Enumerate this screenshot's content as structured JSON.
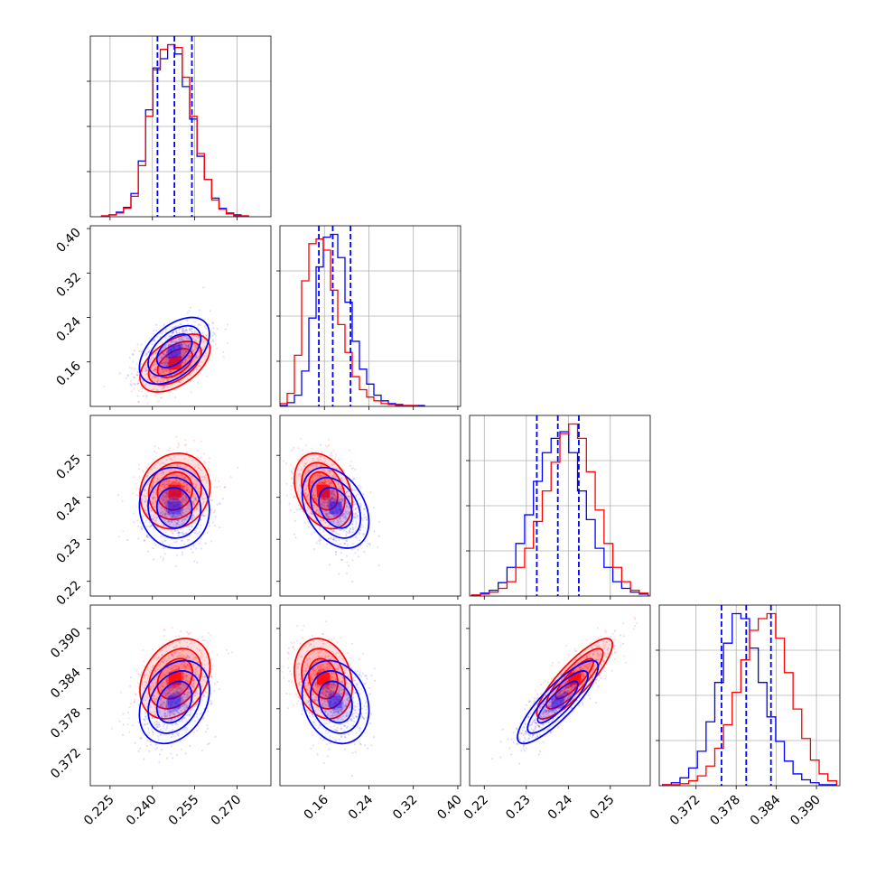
{
  "colors": {
    "series_a": "#0000ff",
    "series_b": "#ff0000",
    "quantile_line": "#0000ff",
    "grid": "#b0b0b0"
  },
  "chart_data": {
    "type": "corner",
    "n_params": 4,
    "grid": true,
    "params": [
      {
        "range": [
          0.218,
          0.282
        ],
        "ticks": [
          0.225,
          0.24,
          0.255,
          0.27
        ],
        "tick_labels": [
          "0.225",
          "0.240",
          "0.255",
          "0.270"
        ]
      },
      {
        "range": [
          0.08,
          0.405
        ],
        "ticks": [
          0.16,
          0.24,
          0.32,
          0.4
        ],
        "tick_labels": [
          "0.16",
          "0.24",
          "0.32",
          "0.40"
        ]
      },
      {
        "range": [
          0.2165,
          0.2595
        ],
        "ticks": [
          0.22,
          0.23,
          0.24,
          0.25
        ],
        "tick_labels": [
          "0.22",
          "0.23",
          "0.24",
          "0.25"
        ]
      },
      {
        "range": [
          0.3665,
          0.3935
        ],
        "ticks": [
          0.372,
          0.378,
          0.384,
          0.39
        ],
        "tick_labels": [
          "0.372",
          "0.378",
          "0.384",
          "0.390"
        ]
      }
    ],
    "series": [
      {
        "color": "#0000ff",
        "mean": [
          0.2478,
          0.18,
          0.2375,
          0.379
        ],
        "std": [
          0.0062,
          0.03,
          0.0048,
          0.0031
        ],
        "corr": [
          [
            1,
            0.5,
            -0.05,
            0.3
          ],
          [
            0.5,
            1,
            -0.35,
            -0.2
          ],
          [
            -0.05,
            -0.35,
            1,
            0.85
          ],
          [
            0.3,
            -0.2,
            0.85,
            1
          ]
        ]
      },
      {
        "color": "#ff0000",
        "mean": [
          0.248,
          0.158,
          0.2415,
          0.3825
        ],
        "std": [
          0.0062,
          0.026,
          0.0045,
          0.003
        ],
        "corr": [
          [
            1,
            0.5,
            0.1,
            0.3
          ],
          [
            0.5,
            1,
            -0.3,
            -0.2
          ],
          [
            0.1,
            -0.3,
            1,
            0.85
          ],
          [
            0.3,
            -0.2,
            0.85,
            1
          ]
        ]
      }
    ],
    "quantiles": [
      [
        0.2418,
        0.2478,
        0.254
      ],
      [
        0.15,
        0.175,
        0.207
      ],
      [
        0.2325,
        0.2375,
        0.2425
      ],
      [
        0.3758,
        0.3795,
        0.3832
      ]
    ],
    "histograms": [
      {
        "bin_edges": [
          0.222,
          0.2246,
          0.2272,
          0.2298,
          0.2324,
          0.235,
          0.2376,
          0.2402,
          0.2428,
          0.2454,
          0.248,
          0.2506,
          0.2532,
          0.2558,
          0.2584,
          0.261,
          0.2636,
          0.2662,
          0.2688,
          0.2714,
          0.274
        ],
        "series": [
          [
            1,
            2,
            5,
            10,
            25,
            60,
            115,
            160,
            170,
            185,
            175,
            140,
            105,
            65,
            40,
            20,
            9,
            4,
            2,
            1
          ],
          [
            1,
            2,
            4,
            9,
            22,
            55,
            108,
            158,
            180,
            185,
            182,
            150,
            108,
            68,
            40,
            18,
            8,
            3,
            1,
            1
          ]
        ]
      },
      {
        "bin_edges": [
          0.08,
          0.093,
          0.106,
          0.119,
          0.132,
          0.145,
          0.158,
          0.171,
          0.184,
          0.197,
          0.21,
          0.223,
          0.236,
          0.249,
          0.262,
          0.275,
          0.288,
          0.301,
          0.314,
          0.327,
          0.34
        ],
        "series": [
          [
            1,
            4,
            12,
            38,
            95,
            150,
            182,
            185,
            160,
            112,
            70,
            40,
            24,
            12,
            6,
            3,
            2,
            1,
            1,
            1
          ],
          [
            3,
            14,
            55,
            135,
            175,
            180,
            168,
            125,
            88,
            58,
            32,
            18,
            10,
            6,
            3,
            2,
            1,
            1,
            1,
            0
          ]
        ]
      },
      {
        "bin_edges": [
          0.217,
          0.2191,
          0.2212,
          0.2233,
          0.2254,
          0.2275,
          0.2296,
          0.2317,
          0.2338,
          0.2359,
          0.238,
          0.2401,
          0.2422,
          0.2443,
          0.2464,
          0.2485,
          0.2506,
          0.2527,
          0.2548,
          0.2569,
          0.259
        ],
        "series": [
          [
            1,
            3,
            6,
            14,
            30,
            55,
            85,
            120,
            150,
            165,
            172,
            150,
            110,
            80,
            50,
            30,
            15,
            8,
            4,
            2
          ],
          [
            1,
            2,
            4,
            8,
            15,
            30,
            50,
            78,
            110,
            140,
            170,
            180,
            165,
            130,
            90,
            55,
            30,
            15,
            6,
            3
          ]
        ]
      },
      {
        "bin_edges": [
          0.367,
          0.3683,
          0.3696,
          0.3709,
          0.3722,
          0.3735,
          0.3748,
          0.3761,
          0.3774,
          0.3787,
          0.38,
          0.3813,
          0.3826,
          0.3839,
          0.3852,
          0.3865,
          0.3878,
          0.3891,
          0.3904,
          0.3917,
          0.393
        ],
        "series": [
          [
            1,
            3,
            8,
            18,
            35,
            65,
            105,
            145,
            175,
            170,
            140,
            105,
            70,
            45,
            25,
            12,
            6,
            3,
            1,
            1
          ],
          [
            1,
            1,
            2,
            5,
            10,
            20,
            38,
            62,
            95,
            128,
            158,
            170,
            175,
            150,
            115,
            78,
            48,
            26,
            12,
            5
          ]
        ]
      }
    ]
  }
}
